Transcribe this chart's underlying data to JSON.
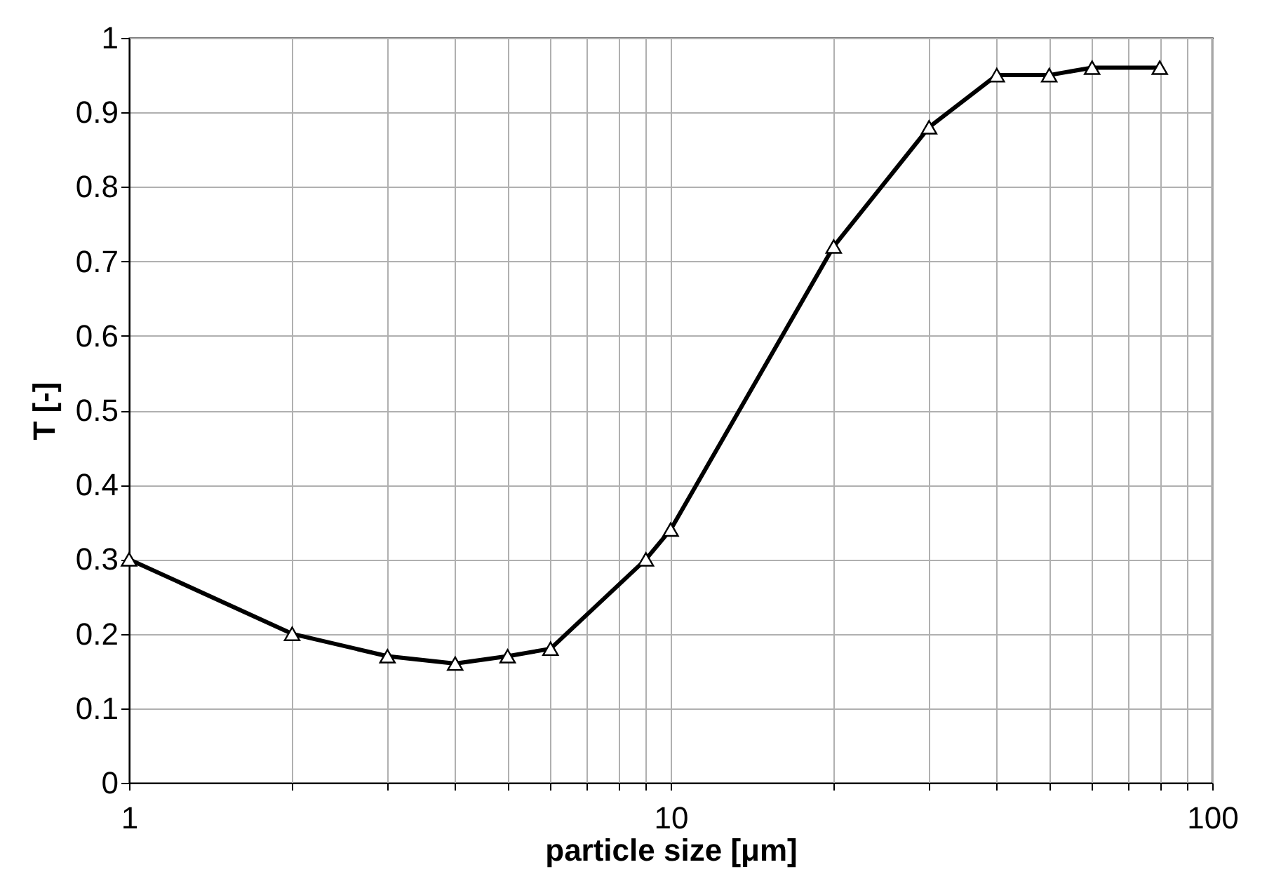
{
  "chart_data": {
    "type": "line",
    "xlabel": "particle size [μm]",
    "ylabel": "T [-]",
    "x": [
      1,
      2,
      3,
      4,
      5,
      6,
      9,
      10,
      20,
      30,
      40,
      50,
      60,
      80
    ],
    "series": [
      {
        "color": "#000000",
        "values": [
          0.3,
          0.2,
          0.17,
          0.16,
          0.17,
          0.18,
          0.3,
          0.34,
          0.72,
          0.88,
          0.95,
          0.95,
          0.96,
          0.96
        ]
      }
    ],
    "log": "x",
    "xlim": [
      1,
      100
    ],
    "xticks": [
      1,
      {
        "value": 2,
        "label": null
      },
      {
        "value": 3,
        "label": null
      },
      {
        "value": 4,
        "label": null
      },
      {
        "value": 5,
        "label": null
      },
      {
        "value": 6,
        "label": null
      },
      {
        "value": 7,
        "label": null
      },
      {
        "value": 8,
        "label": null
      },
      {
        "value": 9,
        "label": null
      },
      10,
      {
        "value": 20,
        "label": null
      },
      {
        "value": 30,
        "label": null
      },
      {
        "value": 40,
        "label": null
      },
      {
        "value": 50,
        "label": null
      },
      {
        "value": 60,
        "label": null
      },
      {
        "value": 70,
        "label": null
      },
      {
        "value": 80,
        "label": null
      },
      {
        "value": 90,
        "label": null
      },
      100
    ],
    "ylim": [
      0,
      1
    ],
    "yticks": [
      0,
      0.1,
      0.2,
      0.3,
      0.4,
      0.5,
      0.6,
      0.7,
      0.8,
      0.9,
      1
    ],
    "grid": true,
    "marker": "triangle",
    "line_style": "solid"
  }
}
